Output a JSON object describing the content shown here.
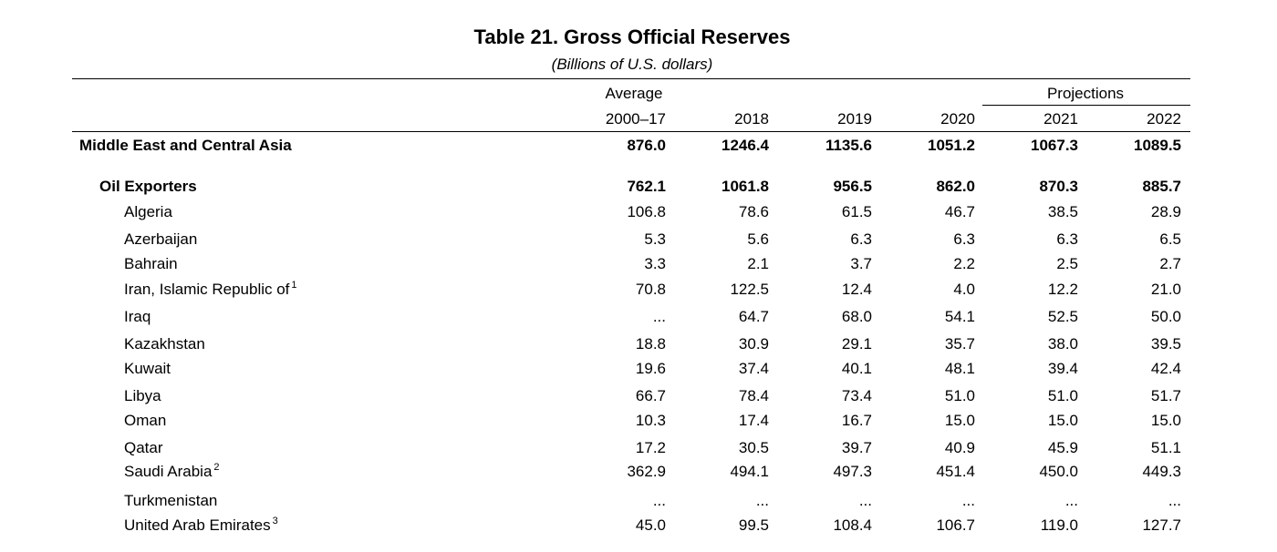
{
  "title": "Table 21. Gross Official Reserves",
  "subtitle": "(Billions of U.S. dollars)",
  "header": {
    "average_label": "Average",
    "projections_label": "Projections",
    "columns": [
      "2000–17",
      "2018",
      "2019",
      "2020",
      "2021",
      "2022"
    ]
  },
  "rows": [
    {
      "label": "Middle East and Central Asia",
      "level": 0,
      "bold": true,
      "footnote": "",
      "values": [
        "876.0",
        "1246.4",
        "1135.6",
        "1051.2",
        "1067.3",
        "1089.5"
      ]
    },
    {
      "label": "Oil Exporters",
      "level": 1,
      "bold": true,
      "footnote": "",
      "values": [
        "762.1",
        "1061.8",
        "956.5",
        "862.0",
        "870.3",
        "885.7"
      ]
    },
    {
      "label": "Algeria",
      "level": 2,
      "bold": false,
      "footnote": "",
      "values": [
        "106.8",
        "78.6",
        "61.5",
        "46.7",
        "38.5",
        "28.9"
      ]
    },
    {
      "label": "Azerbaijan",
      "level": 2,
      "bold": false,
      "footnote": "",
      "values": [
        "5.3",
        "5.6",
        "6.3",
        "6.3",
        "6.3",
        "6.5"
      ]
    },
    {
      "label": "Bahrain",
      "level": 2,
      "bold": false,
      "footnote": "",
      "values": [
        "3.3",
        "2.1",
        "3.7",
        "2.2",
        "2.5",
        "2.7"
      ]
    },
    {
      "label": "Iran, Islamic Republic of",
      "level": 2,
      "bold": false,
      "footnote": "1",
      "values": [
        "70.8",
        "122.5",
        "12.4",
        "4.0",
        "12.2",
        "21.0"
      ]
    },
    {
      "label": "Iraq",
      "level": 2,
      "bold": false,
      "footnote": "",
      "values": [
        "...",
        "64.7",
        "68.0",
        "54.1",
        "52.5",
        "50.0"
      ]
    },
    {
      "label": "Kazakhstan",
      "level": 2,
      "bold": false,
      "footnote": "",
      "values": [
        "18.8",
        "30.9",
        "29.1",
        "35.7",
        "38.0",
        "39.5"
      ]
    },
    {
      "label": "Kuwait",
      "level": 2,
      "bold": false,
      "footnote": "",
      "values": [
        "19.6",
        "37.4",
        "40.1",
        "48.1",
        "39.4",
        "42.4"
      ]
    },
    {
      "label": "Libya",
      "level": 2,
      "bold": false,
      "footnote": "",
      "values": [
        "66.7",
        "78.4",
        "73.4",
        "51.0",
        "51.0",
        "51.7"
      ]
    },
    {
      "label": "Oman",
      "level": 2,
      "bold": false,
      "footnote": "",
      "values": [
        "10.3",
        "17.4",
        "16.7",
        "15.0",
        "15.0",
        "15.0"
      ]
    },
    {
      "label": "Qatar",
      "level": 2,
      "bold": false,
      "footnote": "",
      "values": [
        "17.2",
        "30.5",
        "39.7",
        "40.9",
        "45.9",
        "51.1"
      ]
    },
    {
      "label": "Saudi Arabia",
      "level": 2,
      "bold": false,
      "footnote": "2",
      "values": [
        "362.9",
        "494.1",
        "497.3",
        "451.4",
        "450.0",
        "449.3"
      ]
    },
    {
      "label": "Turkmenistan",
      "level": 2,
      "bold": false,
      "footnote": "",
      "values": [
        "...",
        "...",
        "...",
        "...",
        "...",
        "..."
      ]
    },
    {
      "label": "United Arab Emirates",
      "level": 2,
      "bold": false,
      "footnote": "3",
      "values": [
        "45.0",
        "99.5",
        "108.4",
        "106.7",
        "119.0",
        "127.7"
      ]
    }
  ]
}
